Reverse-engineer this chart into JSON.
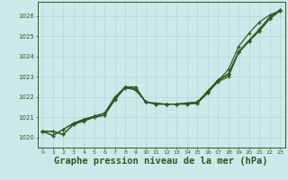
{
  "bg_color": "#cde8ea",
  "grid_color": "#b8d8da",
  "line_color": "#2d5a1b",
  "xlabel": "Graphe pression niveau de la mer (hPa)",
  "xlabel_fontsize": 7.5,
  "ylabel_values": [
    1020,
    1021,
    1022,
    1023,
    1024,
    1025,
    1026
  ],
  "xlim": [
    -0.5,
    23.5
  ],
  "ylim": [
    1019.5,
    1026.7
  ],
  "xticks": [
    0,
    1,
    2,
    3,
    4,
    5,
    6,
    7,
    8,
    9,
    10,
    11,
    12,
    13,
    14,
    15,
    16,
    17,
    18,
    19,
    20,
    21,
    22,
    23
  ],
  "line1": [
    1020.3,
    1020.3,
    1020.15,
    1020.65,
    1020.8,
    1021.0,
    1021.1,
    1021.9,
    1022.5,
    1022.4,
    1021.75,
    1021.7,
    1021.65,
    1021.65,
    1021.7,
    1021.75,
    1022.25,
    1022.8,
    1023.35,
    1024.5,
    1025.15,
    1025.7,
    1026.05,
    1026.25
  ],
  "line2": [
    1020.3,
    1020.3,
    1020.15,
    1020.65,
    1020.85,
    1021.0,
    1021.1,
    1021.85,
    1022.45,
    1022.35,
    1021.75,
    1021.65,
    1021.65,
    1021.65,
    1021.65,
    1021.7,
    1022.2,
    1022.75,
    1023.0,
    1024.2,
    1024.75,
    1025.25,
    1025.85,
    1026.25
  ],
  "line3": [
    1020.3,
    1020.1,
    1020.4,
    1020.7,
    1020.9,
    1021.05,
    1021.2,
    1021.9,
    1022.5,
    1022.4,
    1021.75,
    1021.65,
    1021.65,
    1021.65,
    1021.65,
    1021.7,
    1022.2,
    1022.8,
    1023.1,
    1024.2,
    1024.75,
    1025.3,
    1025.9,
    1026.3
  ],
  "line4": [
    1020.3,
    1020.1,
    1020.4,
    1020.7,
    1020.9,
    1021.05,
    1021.2,
    1022.0,
    1022.5,
    1022.5,
    1021.75,
    1021.65,
    1021.65,
    1021.65,
    1021.7,
    1021.75,
    1022.3,
    1022.85,
    1023.15,
    1024.25,
    1024.8,
    1025.35,
    1025.95,
    1026.3
  ]
}
